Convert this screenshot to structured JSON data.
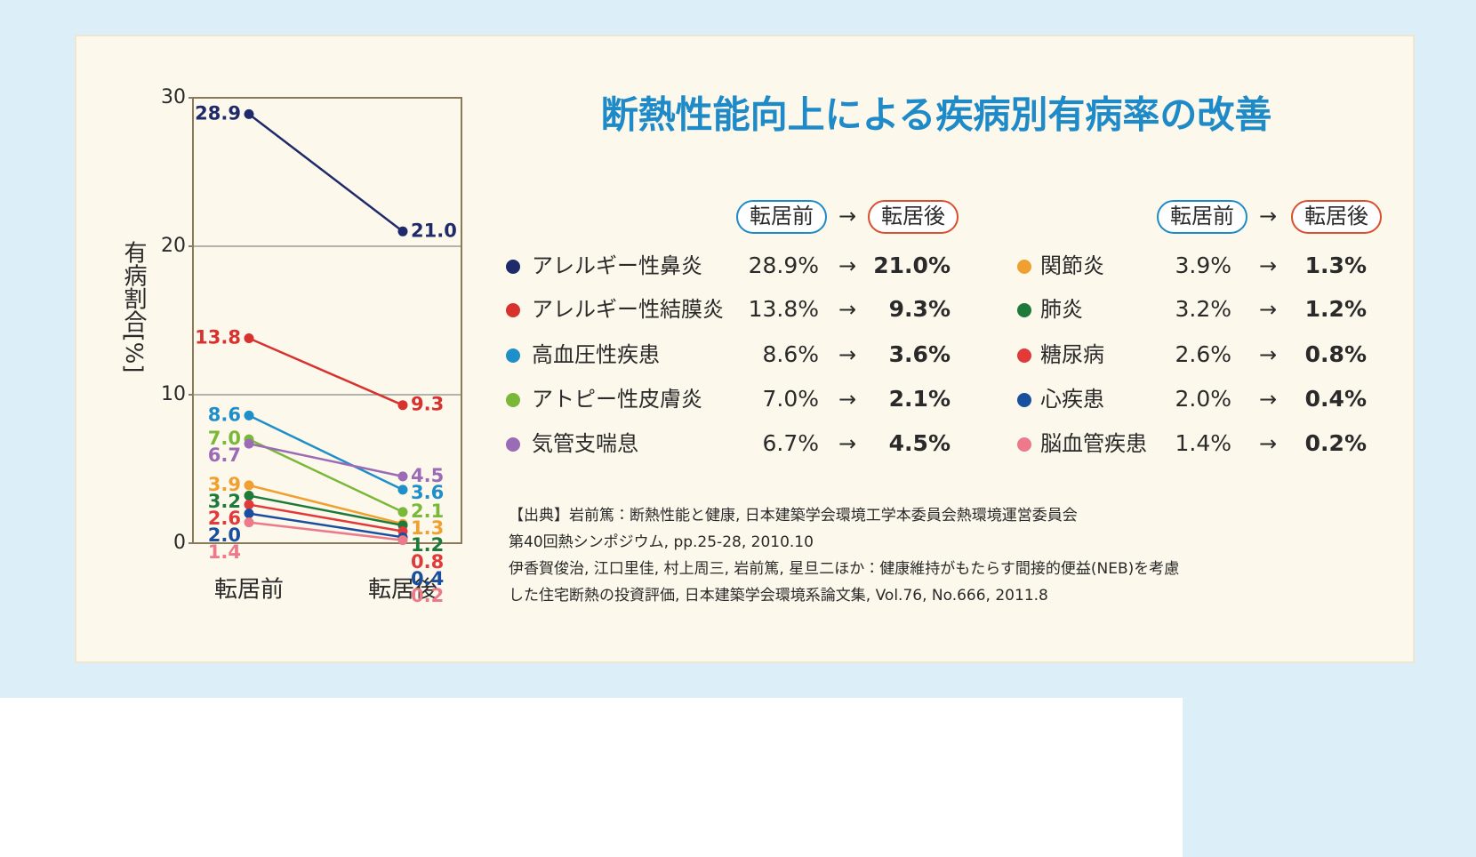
{
  "chart_data": {
    "type": "line",
    "title": "断熱性能向上による疾病別有病率の改善",
    "ylabel": "有病割合[%]",
    "categories": [
      "転居前",
      "転居後"
    ],
    "ylim": [
      0,
      30
    ],
    "yticks": [
      0,
      10,
      20,
      30
    ],
    "grid": true,
    "legend": {
      "headers": [
        "転居前",
        "→",
        "転居後"
      ]
    },
    "series": [
      {
        "name": "アレルギー性鼻炎",
        "color": "#1f2a6b",
        "values": [
          28.9,
          21.0
        ],
        "value_labels": [
          "28.9",
          "21.0"
        ],
        "legend_labels": [
          "28.9%",
          "21.0%"
        ]
      },
      {
        "name": "アレルギー性結膜炎",
        "color": "#d8322f",
        "values": [
          13.8,
          9.3
        ],
        "value_labels": [
          "13.8",
          "9.3"
        ],
        "legend_labels": [
          "13.8%",
          "9.3%"
        ]
      },
      {
        "name": "高血圧性疾患",
        "color": "#1f8fc9",
        "values": [
          8.6,
          3.6
        ],
        "value_labels": [
          "8.6",
          "3.6"
        ],
        "legend_labels": [
          "8.6%",
          "3.6%"
        ]
      },
      {
        "name": "アトピー性皮膚炎",
        "color": "#7ab83a",
        "values": [
          7.0,
          2.1
        ],
        "value_labels": [
          "7.0",
          "2.1"
        ],
        "legend_labels": [
          "7.0%",
          "2.1%"
        ]
      },
      {
        "name": "気管支喘息",
        "color": "#9b6bb5",
        "values": [
          6.7,
          4.5
        ],
        "value_labels": [
          "6.7",
          "4.5"
        ],
        "legend_labels": [
          "6.7%",
          "4.5%"
        ]
      },
      {
        "name": "関節炎",
        "color": "#f0a030",
        "values": [
          3.9,
          1.3
        ],
        "value_labels": [
          "3.9",
          "1.3"
        ],
        "legend_labels": [
          "3.9%",
          "1.3%"
        ]
      },
      {
        "name": "肺炎",
        "color": "#1e7a3a",
        "values": [
          3.2,
          1.2
        ],
        "value_labels": [
          "3.2",
          "1.2"
        ],
        "legend_labels": [
          "3.2%",
          "1.2%"
        ]
      },
      {
        "name": "糖尿病",
        "color": "#e03a3a",
        "values": [
          2.6,
          0.8
        ],
        "value_labels": [
          "2.6",
          "0.8"
        ],
        "legend_labels": [
          "2.6%",
          "0.8%"
        ]
      },
      {
        "name": "心疾患",
        "color": "#1a4fa0",
        "values": [
          2.0,
          0.4
        ],
        "value_labels": [
          "2.0",
          "0.4"
        ],
        "legend_labels": [
          "2.0%",
          "0.4%"
        ]
      },
      {
        "name": "脳血管疾患",
        "color": "#ec7a8a",
        "values": [
          1.4,
          0.2
        ],
        "value_labels": [
          "1.4",
          "0.2"
        ],
        "legend_labels": [
          "1.4%",
          "0.2%"
        ]
      }
    ],
    "source": [
      "【出典】岩前篤：断熱性能と健康, 日本建築学会環境工学本委員会熱環境運営委員会",
      "第40回熱シンポジウム, pp.25-28, 2010.10",
      "伊香賀俊治, 江口里佳, 村上周三, 岩前篤, 星旦二ほか：健康維持がもたらす間接的便益(NEB)を考慮",
      "した住宅断熱の投資評価, 日本建築学会環境系論文集, Vol.76, No.666, 2011.8"
    ]
  }
}
